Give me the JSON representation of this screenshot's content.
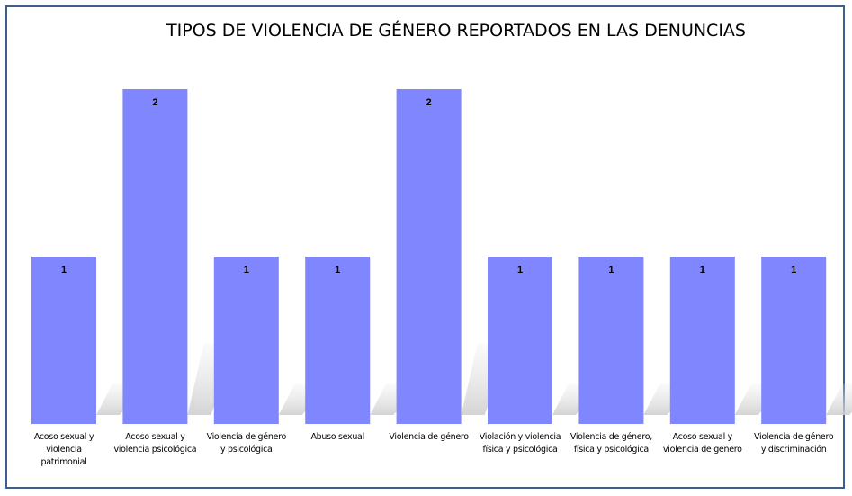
{
  "chart_data": {
    "type": "bar",
    "title": "TIPOS DE VIOLENCIA DE GÉNERO REPORTADOS EN LAS DENUNCIAS",
    "categories": [
      [
        "Acoso sexual y",
        "violencia",
        "patrimonial"
      ],
      [
        "Acoso sexual y",
        "violencia psicológica"
      ],
      [
        "Violencia de género",
        "y psicológica"
      ],
      [
        "Abuso sexual"
      ],
      [
        "Violencia de género"
      ],
      [
        "Violación y violencia",
        "física y psicológica"
      ],
      [
        "Violencia de género,",
        "física y psicológica"
      ],
      [
        "Acoso sexual y",
        "violencia de género"
      ],
      [
        "Violencia de género",
        "y discriminación"
      ]
    ],
    "values": [
      1,
      2,
      1,
      1,
      2,
      1,
      1,
      1,
      1
    ],
    "ylim": [
      0,
      2
    ],
    "grid": false,
    "legend": "none",
    "data_labels": true,
    "colors": {
      "bar": "#7f86fe",
      "frame": "#3d5f8f",
      "shadow": "#c8c8c8"
    }
  }
}
